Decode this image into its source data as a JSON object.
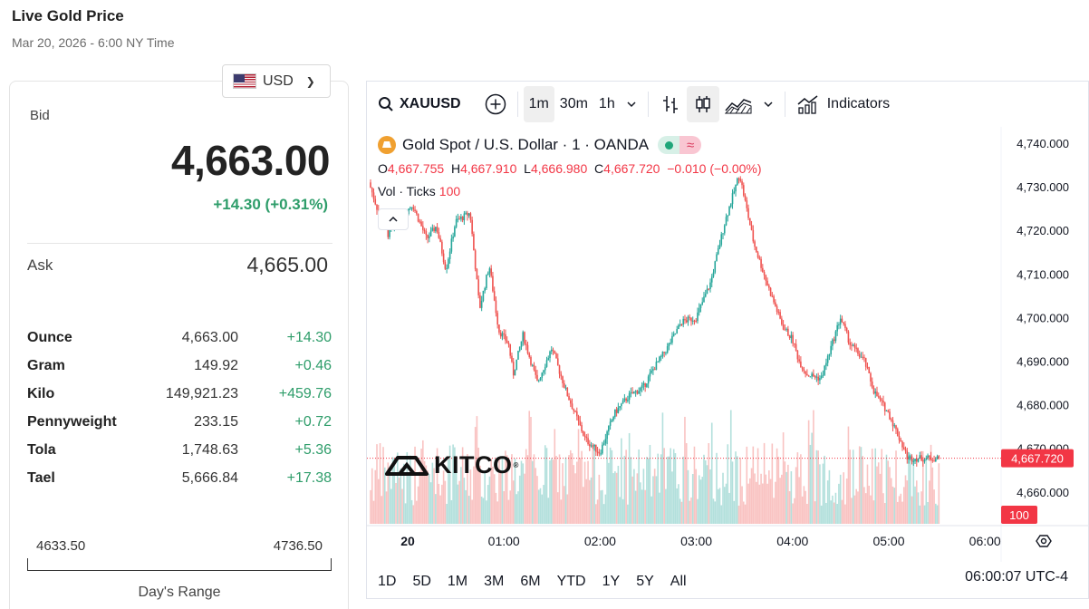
{
  "header": {
    "title": "Live Gold Price",
    "subtitle": "Mar 20, 2026 - 6:00 NY Time"
  },
  "currency": {
    "selected": "USD"
  },
  "quote": {
    "bid_label": "Bid",
    "bid": "4,663.00",
    "change": "+14.30 (+0.31%)",
    "ask_label": "Ask",
    "ask": "4,665.00"
  },
  "units": [
    {
      "name": "Ounce",
      "price": "4,663.00",
      "change": "+14.30"
    },
    {
      "name": "Gram",
      "price": "149.92",
      "change": "+0.46"
    },
    {
      "name": "Kilo",
      "price": "149,921.23",
      "change": "+459.76"
    },
    {
      "name": "Pennyweight",
      "price": "233.15",
      "change": "+0.72"
    },
    {
      "name": "Tola",
      "price": "1,748.63",
      "change": "+5.36"
    },
    {
      "name": "Tael",
      "price": "5,666.84",
      "change": "+17.38"
    }
  ],
  "day_range": {
    "low": "4633.50",
    "high": "4736.50",
    "label": "Day's Range"
  },
  "chart": {
    "symbol": "XAUUSD",
    "intervals": [
      "1m",
      "30m",
      "1h"
    ],
    "active_interval": "1m",
    "indicators_label": "Indicators",
    "legend": {
      "name": "Gold Spot / U.S. Dollar · 1 · OANDA"
    },
    "ohlc": {
      "o_label": "O",
      "o": "4,667.755",
      "h_label": "H",
      "h": "4,667.910",
      "l_label": "L",
      "l": "4,666.980",
      "c_label": "C",
      "c": "4,667.720",
      "chg": "−0.010 (−0.00%)"
    },
    "vol": {
      "label": "Vol · Ticks",
      "value": "100"
    },
    "brand": "KITCO",
    "brand_mark": "®",
    "ranges": [
      "1D",
      "5D",
      "1M",
      "3M",
      "6M",
      "YTD",
      "1Y",
      "5Y",
      "All"
    ],
    "clock": "06:00:07 UTC-4",
    "colors": {
      "up": "#26a69a",
      "down": "#ef5350",
      "last_price": "#f23645",
      "gold": "#f0a030"
    }
  },
  "chart_data": {
    "type": "line",
    "x_ticks": [
      "20",
      "01:00",
      "02:00",
      "03:00",
      "04:00",
      "05:00",
      "06:00"
    ],
    "y_ticks": [
      "4,740.000",
      "4,730.000",
      "4,720.000",
      "4,710.000",
      "4,700.000",
      "4,690.000",
      "4,680.000",
      "4,670.000",
      "4,660.000"
    ],
    "ylim": [
      4655,
      4745
    ],
    "last_price_label": "4,667.720",
    "last_price": 4667.72,
    "volume_label": "100",
    "series": [
      {
        "x": [
          0,
          0.1,
          0.2,
          0.3,
          0.45,
          0.6,
          0.7,
          0.8,
          0.9,
          1.05,
          1.15,
          1.25,
          1.35,
          1.45,
          1.5,
          1.6,
          1.75,
          1.9,
          2.05,
          2.25,
          2.4,
          2.55,
          2.7,
          2.85,
          2.95,
          3.1,
          3.25,
          3.4,
          3.55,
          3.7,
          3.85,
          4.0,
          4.15,
          4.3,
          4.4,
          4.47,
          4.55,
          4.7,
          4.9,
          5.0,
          5.15,
          5.25,
          5.4,
          5.5,
          5.6,
          5.7,
          5.8,
          5.9,
          6.0
        ],
        "values": [
          4731,
          4724,
          4719,
          4722,
          4726,
          4718,
          4721,
          4711,
          4722,
          4724,
          4702,
          4712,
          4697,
          4694,
          4687,
          4696,
          4685,
          4693,
          4683,
          4672,
          4669,
          4678,
          4682,
          4684,
          4688,
          4693,
          4699,
          4700,
          4708,
          4722,
          4733,
          4717,
          4707,
          4698,
          4695,
          4690,
          4687,
          4686,
          4700,
          4694,
          4690,
          4683,
          4678,
          4673,
          4667.72,
          4667.72,
          4667.72,
          4667.72,
          4667.72
        ]
      }
    ]
  }
}
